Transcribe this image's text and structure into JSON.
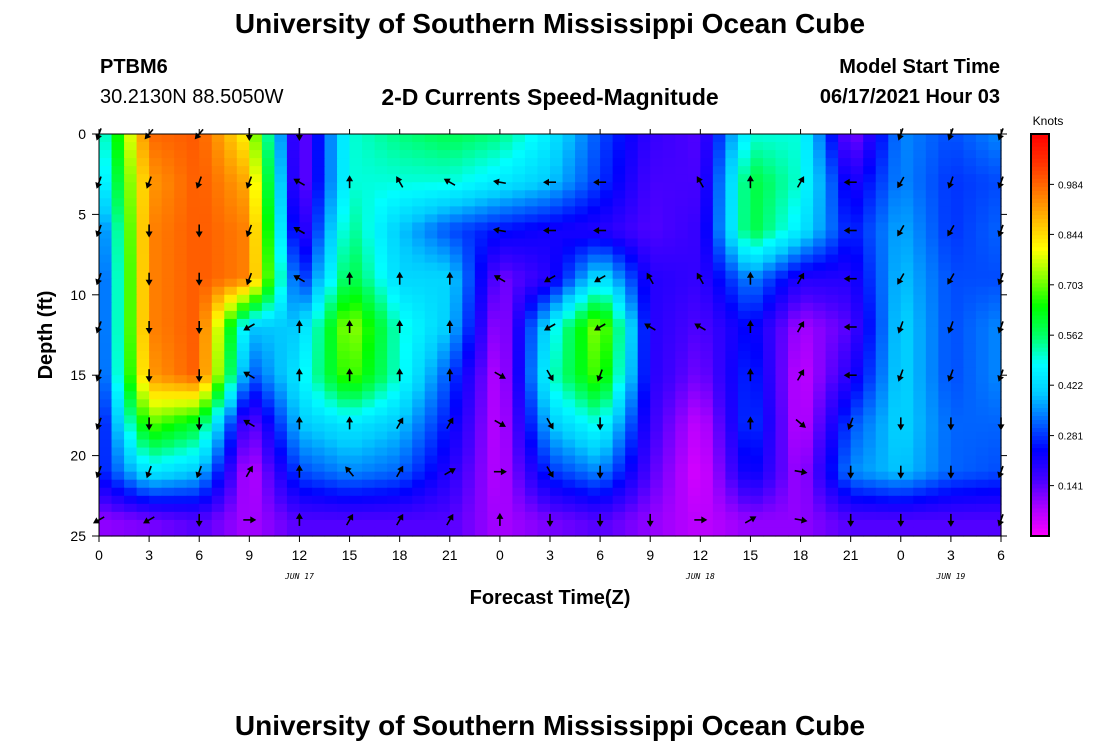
{
  "header": {
    "title": "University of Southern Mississippi Ocean Cube",
    "footer_title": "University of Southern Mississippi Ocean Cube",
    "station": "PTBM6",
    "coords": "30.2130N  88.5050W",
    "plot_title": "2-D Currents Speed-Magnitude",
    "start_label": "Model Start Time",
    "start_value": "06/17/2021 Hour 03"
  },
  "colors": {
    "palette": [
      "#ff00ff",
      "#aa00ff",
      "#4400ff",
      "#0000ff",
      "#0066ff",
      "#00ccff",
      "#00ffff",
      "#00ff66",
      "#00ff00",
      "#88ff00",
      "#ffff00",
      "#ffbb00",
      "#ff7700",
      "#ff3300",
      "#ff0000"
    ]
  },
  "chart_data": {
    "type": "heatmap",
    "title": "2-D Currents Speed-Magnitude",
    "xlabel": "Forecast Time(Z)",
    "ylabel": "Depth (ft)",
    "x_tick_labels": [
      "0",
      "3",
      "6",
      "9",
      "12",
      "15",
      "18",
      "21",
      "0",
      "3",
      "6",
      "9",
      "12",
      "15",
      "18",
      "21",
      "0",
      "3",
      "6"
    ],
    "x_hours": [
      0,
      3,
      6,
      9,
      12,
      15,
      18,
      21,
      24,
      27,
      30,
      33,
      36,
      39,
      42,
      45,
      48,
      51,
      54
    ],
    "date_labels": [
      {
        "text": "JUN 17",
        "hour": 12
      },
      {
        "text": "JUN 18",
        "hour": 36
      },
      {
        "text": "JUN 19",
        "hour": 51
      }
    ],
    "y_ticks": [
      0,
      5,
      10,
      15,
      20,
      25
    ],
    "ylim": [
      0,
      25
    ],
    "xlim": [
      0,
      54
    ],
    "colorbar": {
      "unit": "Knots",
      "labels": [
        "0.984",
        "0.844",
        "0.703",
        "0.562",
        "0.422",
        "0.281",
        "0.141"
      ],
      "label_values": [
        0.984,
        0.844,
        0.703,
        0.562,
        0.422,
        0.281,
        0.141
      ],
      "range": [
        0,
        1.125
      ]
    },
    "speed_grid_depths": [
      0,
      3,
      6,
      9,
      12,
      15,
      18,
      21,
      24,
      25
    ],
    "speed_grid_hours": [
      0,
      3,
      6,
      9,
      12,
      15,
      18,
      21,
      24,
      27,
      30,
      33,
      36,
      39,
      42,
      45,
      48,
      51,
      54
    ],
    "speed_grid": [
      [
        0.45,
        0.98,
        1.0,
        0.8,
        0.1,
        0.5,
        0.55,
        0.58,
        0.55,
        0.45,
        0.3,
        0.18,
        0.15,
        0.5,
        0.5,
        0.1,
        0.35,
        0.3,
        0.35
      ],
      [
        0.4,
        0.92,
        1.0,
        0.9,
        0.1,
        0.5,
        0.5,
        0.5,
        0.45,
        0.4,
        0.28,
        0.16,
        0.16,
        0.6,
        0.5,
        0.2,
        0.35,
        0.28,
        0.3
      ],
      [
        0.28,
        0.95,
        1.0,
        0.95,
        0.15,
        0.55,
        0.4,
        0.3,
        0.25,
        0.22,
        0.2,
        0.15,
        0.18,
        0.6,
        0.45,
        0.25,
        0.38,
        0.28,
        0.32
      ],
      [
        0.25,
        0.95,
        1.0,
        0.95,
        0.25,
        0.6,
        0.42,
        0.42,
        0.12,
        0.2,
        0.45,
        0.2,
        0.18,
        0.35,
        0.2,
        0.2,
        0.4,
        0.3,
        0.3
      ],
      [
        0.25,
        0.95,
        1.0,
        0.4,
        0.4,
        0.75,
        0.5,
        0.4,
        0.07,
        0.45,
        0.75,
        0.2,
        0.15,
        0.25,
        0.08,
        0.15,
        0.42,
        0.3,
        0.35
      ],
      [
        0.25,
        0.92,
        1.0,
        0.3,
        0.45,
        0.7,
        0.5,
        0.3,
        0.05,
        0.5,
        0.7,
        0.2,
        0.12,
        0.28,
        0.05,
        0.2,
        0.42,
        0.3,
        0.35
      ],
      [
        0.22,
        0.7,
        0.6,
        0.12,
        0.4,
        0.45,
        0.4,
        0.25,
        0.05,
        0.4,
        0.5,
        0.18,
        0.05,
        0.3,
        0.05,
        0.3,
        0.42,
        0.32,
        0.32
      ],
      [
        0.25,
        0.45,
        0.4,
        0.05,
        0.3,
        0.35,
        0.32,
        0.2,
        0.06,
        0.28,
        0.35,
        0.15,
        0.03,
        0.25,
        0.08,
        0.35,
        0.4,
        0.32,
        0.3
      ],
      [
        0.1,
        0.12,
        0.15,
        0.08,
        0.15,
        0.15,
        0.15,
        0.15,
        0.08,
        0.12,
        0.15,
        0.1,
        0.06,
        0.1,
        0.1,
        0.15,
        0.15,
        0.15,
        0.15
      ],
      [
        0.1,
        0.12,
        0.15,
        0.08,
        0.15,
        0.15,
        0.15,
        0.15,
        0.08,
        0.12,
        0.15,
        0.1,
        0.06,
        0.1,
        0.1,
        0.15,
        0.15,
        0.15,
        0.15
      ]
    ],
    "arrow_depths": [
      0,
      3,
      6,
      9,
      12,
      15,
      18,
      21,
      24
    ],
    "arrow_hours": [
      0,
      3,
      6,
      9,
      12,
      15,
      18,
      21,
      24,
      27,
      30,
      33,
      36,
      39,
      42,
      45,
      48,
      51,
      54
    ],
    "arrow_directions_deg": [
      [
        200,
        220,
        220,
        180,
        180,
        null,
        null,
        null,
        null,
        null,
        null,
        null,
        null,
        null,
        null,
        null,
        200,
        200,
        200
      ],
      [
        200,
        200,
        200,
        200,
        300,
        0,
        330,
        300,
        280,
        270,
        270,
        null,
        330,
        0,
        30,
        270,
        210,
        200,
        200
      ],
      [
        200,
        180,
        180,
        200,
        300,
        null,
        null,
        null,
        280,
        270,
        270,
        null,
        null,
        null,
        null,
        270,
        210,
        210,
        200
      ],
      [
        200,
        180,
        180,
        200,
        300,
        0,
        0,
        0,
        300,
        240,
        240,
        330,
        330,
        0,
        30,
        270,
        210,
        210,
        200
      ],
      [
        200,
        180,
        180,
        240,
        0,
        0,
        0,
        0,
        null,
        240,
        240,
        300,
        300,
        0,
        30,
        270,
        200,
        200,
        200
      ],
      [
        200,
        180,
        180,
        300,
        0,
        0,
        0,
        0,
        120,
        150,
        200,
        null,
        null,
        0,
        30,
        270,
        200,
        200,
        200
      ],
      [
        200,
        180,
        180,
        300,
        0,
        0,
        30,
        30,
        120,
        150,
        180,
        null,
        null,
        0,
        130,
        200,
        180,
        180,
        180
      ],
      [
        200,
        200,
        200,
        30,
        0,
        320,
        30,
        60,
        90,
        150,
        180,
        null,
        null,
        null,
        100,
        180,
        180,
        180,
        200
      ],
      [
        240,
        240,
        180,
        90,
        0,
        30,
        30,
        30,
        0,
        180,
        180,
        180,
        90,
        60,
        100,
        180,
        180,
        180,
        200
      ]
    ]
  }
}
